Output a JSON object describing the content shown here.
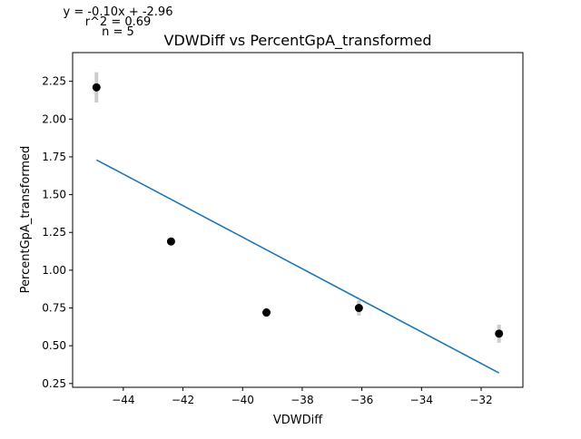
{
  "chart_data": {
    "type": "scatter",
    "title": "VDWDiff vs PercentGpA_transformed",
    "xlabel": "VDWDiff",
    "ylabel": "PercentGpA_transformed",
    "xlim": [
      -45.7,
      -30.6
    ],
    "ylim": [
      0.225,
      2.44
    ],
    "xticks": [
      -44,
      -42,
      -40,
      -38,
      -36,
      -34,
      -32
    ],
    "yticks": [
      0.25,
      0.5,
      0.75,
      1.0,
      1.25,
      1.5,
      1.75,
      2.0,
      2.25
    ],
    "xtick_labels": [
      "−44",
      "−42",
      "−40",
      "−38",
      "−36",
      "−34",
      "−32"
    ],
    "ytick_labels": [
      "0.25",
      "0.50",
      "0.75",
      "1.00",
      "1.25",
      "1.50",
      "1.75",
      "2.00",
      "2.25"
    ],
    "grid": false,
    "points": [
      {
        "x": -44.9,
        "y": 2.21,
        "err": 0.1
      },
      {
        "x": -42.4,
        "y": 1.19,
        "err": 0.02
      },
      {
        "x": -39.2,
        "y": 0.72,
        "err": 0.03
      },
      {
        "x": -36.1,
        "y": 0.75,
        "err": 0.05
      },
      {
        "x": -31.4,
        "y": 0.58,
        "err": 0.06
      }
    ],
    "fit_line": {
      "x": [
        -44.9,
        -31.4
      ],
      "y": [
        1.73,
        0.32
      ]
    },
    "annotations": [
      "y = -0.10x + -2.96",
      "r^2 = 0.69",
      "n = 5"
    ],
    "colors": {
      "points": "#000000",
      "errorbars": "#cccccc",
      "fit": "#1f77b4"
    }
  }
}
